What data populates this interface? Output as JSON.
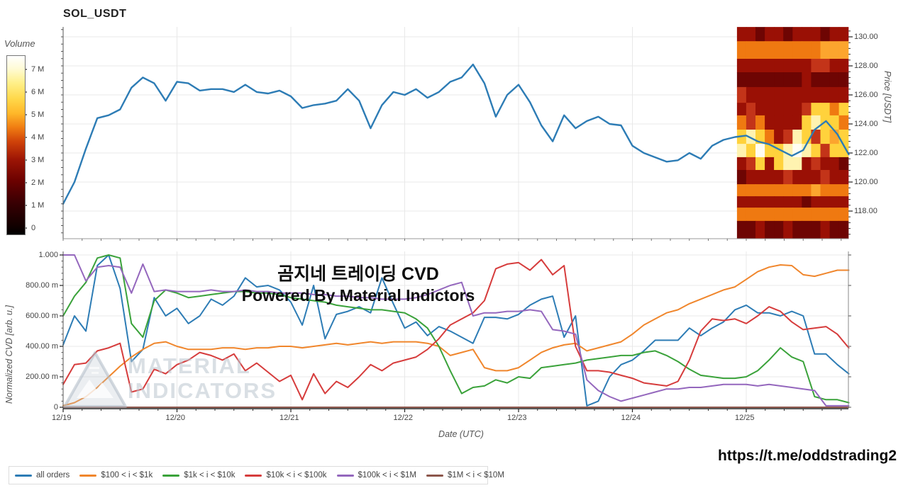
{
  "header": {
    "title": "SOL_USDT"
  },
  "footer": {
    "url": "https://t.me/oddstrading2"
  },
  "overlay": {
    "line1": "곰지네 트레이딩 CVD",
    "line2": "Powered By Material Indictors"
  },
  "watermark": {
    "line1": "MATERIAL",
    "line2": "INDICATORS"
  },
  "legend": [
    {
      "label": "all orders",
      "color": "#2d7cb5"
    },
    {
      "label": "$100 < i < $1k",
      "color": "#f0862c"
    },
    {
      "label": "$1k < i < $10k",
      "color": "#3aa23a"
    },
    {
      "label": "$10k < i < $100k",
      "color": "#d63c3c"
    },
    {
      "label": "$100k < i < $1M",
      "color": "#9467bd"
    },
    {
      "label": "$1M < i < $10M",
      "color": "#8c564b"
    }
  ],
  "chart_data": [
    {
      "id": "price_liquidity",
      "type": "line+heatmap",
      "title": "SOL_USDT",
      "ylabel": "Price [USDT]",
      "ylim": [
        116.1,
        130.7
      ],
      "y_ticks": [
        {
          "v": 130,
          "label": "130.00"
        },
        {
          "v": 128,
          "label": "128.00"
        },
        {
          "v": 126,
          "label": "126.00"
        },
        {
          "v": 124,
          "label": "124.00"
        },
        {
          "v": 122,
          "label": "122.00"
        },
        {
          "v": 120,
          "label": "120.00"
        },
        {
          "v": 118,
          "label": "118.00"
        }
      ],
      "x_categories": [
        "12/19",
        "12/20",
        "12/21",
        "12/22",
        "12/23",
        "12/24",
        "12/25"
      ],
      "x_step_days": 0.1,
      "colorbar": {
        "label": "Volume",
        "tick_labels": [
          "7 M",
          "6 M",
          "5 M",
          "4 M",
          "3 M",
          "2 M",
          "1 M",
          "0"
        ]
      },
      "series": [
        {
          "name": "price",
          "color": "#2d7cb5",
          "values": [
            118.5,
            120.0,
            122.3,
            124.4,
            124.6,
            125.0,
            126.5,
            127.2,
            126.8,
            125.6,
            126.9,
            126.8,
            126.3,
            126.4,
            126.4,
            126.2,
            126.7,
            126.2,
            126.1,
            126.3,
            125.9,
            125.1,
            125.3,
            125.4,
            125.6,
            126.4,
            125.6,
            123.7,
            125.3,
            126.2,
            126.0,
            126.4,
            125.8,
            126.2,
            126.9,
            127.2,
            128.1,
            126.8,
            124.5,
            126.0,
            126.7,
            125.5,
            123.9,
            122.8,
            124.6,
            123.7,
            124.2,
            124.5,
            124.0,
            123.9,
            122.5,
            122.0,
            121.7,
            121.4,
            121.5,
            122.0,
            121.6,
            122.5,
            122.9,
            123.1,
            123.2,
            122.8,
            122.6,
            122.2,
            121.8,
            122.2,
            123.6,
            124.2,
            123.3,
            121.9
          ]
        }
      ],
      "heatmap": {
        "x_day_start": 5.92,
        "x_day_end": 6.9,
        "palette": [
          "#6e0503",
          "#9a1005",
          "#c33419",
          "#ef7911",
          "#fca52e",
          "#ffd23c",
          "#fff3b0",
          "#fffdf2"
        ],
        "rows": [
          {
            "p_top": 130.68,
            "p_bottom": 129.7,
            "cells": "110110111011"
          },
          {
            "p_top": 129.7,
            "p_bottom": 128.49,
            "cells": "333333333444"
          },
          {
            "p_top": 128.49,
            "p_bottom": 127.56,
            "cells": "111111112211"
          },
          {
            "p_top": 127.56,
            "p_bottom": 126.54,
            "cells": "000000010000"
          },
          {
            "p_top": 126.54,
            "p_bottom": 125.46,
            "cells": "211111111111"
          },
          {
            "p_top": 125.46,
            "p_bottom": 124.59,
            "cells": "121111125535"
          },
          {
            "p_top": 124.59,
            "p_bottom": 123.61,
            "cells": "323111156553"
          },
          {
            "p_top": 123.61,
            "p_bottom": 122.63,
            "cells": "565312652545"
          },
          {
            "p_top": 122.63,
            "p_bottom": 121.71,
            "cells": "657556765255"
          },
          {
            "p_top": 121.71,
            "p_bottom": 120.83,
            "cells": "125156612110"
          },
          {
            "p_top": 120.83,
            "p_bottom": 119.85,
            "cells": "011112111211"
          },
          {
            "p_top": 119.85,
            "p_bottom": 119.02,
            "cells": "333333334333"
          },
          {
            "p_top": 119.02,
            "p_bottom": 118.24,
            "cells": "111111101111"
          },
          {
            "p_top": 118.24,
            "p_bottom": 117.32,
            "cells": "333333333333"
          },
          {
            "p_top": 117.32,
            "p_bottom": 116.1,
            "cells": "001001000100"
          }
        ]
      }
    },
    {
      "id": "normalized_cvd",
      "type": "line",
      "ylabel": "Normalized CVD [arb. u.]",
      "xlabel": "Date (UTC)",
      "ylim": [
        0,
        1
      ],
      "y_ticks": [
        {
          "v": 1.0,
          "label": "1.000"
        },
        {
          "v": 0.8,
          "label": "800.00 m"
        },
        {
          "v": 0.6,
          "label": "600.00 m"
        },
        {
          "v": 0.4,
          "label": "400.00 m"
        },
        {
          "v": 0.2,
          "label": "200.00 m"
        },
        {
          "v": 0.0,
          "label": "0"
        }
      ],
      "x_categories": [
        "12/19",
        "12/20",
        "12/21",
        "12/22",
        "12/23",
        "12/24",
        "12/25"
      ],
      "x_step_days": 0.1,
      "series": [
        {
          "name": "all orders",
          "color": "#2d7cb5",
          "values": [
            0.41,
            0.6,
            0.5,
            0.93,
            1.0,
            0.78,
            0.3,
            0.38,
            0.72,
            0.6,
            0.65,
            0.55,
            0.6,
            0.71,
            0.67,
            0.73,
            0.85,
            0.79,
            0.8,
            0.77,
            0.69,
            0.54,
            0.8,
            0.45,
            0.61,
            0.63,
            0.66,
            0.62,
            0.85,
            0.68,
            0.52,
            0.56,
            0.47,
            0.53,
            0.5,
            0.46,
            0.42,
            0.59,
            0.59,
            0.58,
            0.61,
            0.67,
            0.71,
            0.73,
            0.46,
            0.6,
            0.01,
            0.04,
            0.2,
            0.28,
            0.31,
            0.37,
            0.44,
            0.44,
            0.44,
            0.52,
            0.47,
            0.52,
            0.56,
            0.64,
            0.67,
            0.62,
            0.62,
            0.6,
            0.63,
            0.6,
            0.35,
            0.35,
            0.28,
            0.22
          ]
        },
        {
          "name": "$100 < i < $1k",
          "color": "#f0862c",
          "values": [
            0.01,
            0.03,
            0.07,
            0.13,
            0.2,
            0.27,
            0.33,
            0.38,
            0.42,
            0.43,
            0.4,
            0.38,
            0.38,
            0.38,
            0.39,
            0.39,
            0.38,
            0.39,
            0.39,
            0.4,
            0.4,
            0.39,
            0.4,
            0.41,
            0.42,
            0.41,
            0.42,
            0.43,
            0.42,
            0.43,
            0.43,
            0.43,
            0.42,
            0.4,
            0.34,
            0.36,
            0.38,
            0.26,
            0.24,
            0.24,
            0.26,
            0.31,
            0.36,
            0.39,
            0.41,
            0.42,
            0.37,
            0.39,
            0.41,
            0.43,
            0.48,
            0.54,
            0.58,
            0.62,
            0.64,
            0.68,
            0.71,
            0.74,
            0.77,
            0.79,
            0.84,
            0.89,
            0.92,
            0.935,
            0.93,
            0.87,
            0.86,
            0.88,
            0.9,
            0.9
          ]
        },
        {
          "name": "$1k < i < $10k",
          "color": "#3aa23a",
          "values": [
            0.6,
            0.73,
            0.82,
            0.98,
            1.0,
            0.98,
            0.55,
            0.46,
            0.7,
            0.77,
            0.75,
            0.72,
            0.73,
            0.74,
            0.75,
            0.76,
            0.76,
            0.75,
            0.75,
            0.74,
            0.72,
            0.71,
            0.7,
            0.69,
            0.67,
            0.66,
            0.65,
            0.64,
            0.64,
            0.63,
            0.62,
            0.58,
            0.52,
            0.4,
            0.24,
            0.09,
            0.13,
            0.14,
            0.18,
            0.16,
            0.2,
            0.19,
            0.26,
            0.27,
            0.28,
            0.29,
            0.31,
            0.32,
            0.33,
            0.34,
            0.34,
            0.36,
            0.37,
            0.34,
            0.3,
            0.25,
            0.21,
            0.2,
            0.19,
            0.19,
            0.2,
            0.24,
            0.31,
            0.39,
            0.33,
            0.3,
            0.07,
            0.05,
            0.05,
            0.03
          ]
        },
        {
          "name": "$10k < i < $100k",
          "color": "#d63c3c",
          "values": [
            0.15,
            0.28,
            0.29,
            0.37,
            0.39,
            0.42,
            0.1,
            0.12,
            0.25,
            0.22,
            0.28,
            0.31,
            0.36,
            0.34,
            0.31,
            0.35,
            0.24,
            0.29,
            0.23,
            0.17,
            0.21,
            0.05,
            0.22,
            0.09,
            0.17,
            0.13,
            0.2,
            0.28,
            0.24,
            0.29,
            0.31,
            0.33,
            0.38,
            0.45,
            0.54,
            0.58,
            0.62,
            0.7,
            0.91,
            0.94,
            0.95,
            0.9,
            0.97,
            0.87,
            0.93,
            0.4,
            0.24,
            0.24,
            0.23,
            0.21,
            0.19,
            0.16,
            0.15,
            0.14,
            0.17,
            0.31,
            0.5,
            0.58,
            0.57,
            0.58,
            0.55,
            0.6,
            0.66,
            0.63,
            0.56,
            0.51,
            0.52,
            0.53,
            0.48,
            0.39
          ]
        },
        {
          "name": "$100k < i < $1M",
          "color": "#9467bd",
          "values": [
            1.0,
            1.0,
            0.83,
            0.92,
            0.93,
            0.92,
            0.75,
            0.94,
            0.76,
            0.77,
            0.76,
            0.76,
            0.76,
            0.77,
            0.76,
            0.76,
            0.77,
            0.76,
            0.76,
            0.75,
            0.75,
            0.75,
            0.74,
            0.74,
            0.73,
            0.73,
            0.72,
            0.72,
            0.71,
            0.71,
            0.71,
            0.72,
            0.74,
            0.77,
            0.8,
            0.82,
            0.6,
            0.62,
            0.62,
            0.63,
            0.63,
            0.64,
            0.63,
            0.51,
            0.5,
            0.48,
            0.18,
            0.11,
            0.07,
            0.04,
            0.06,
            0.08,
            0.1,
            0.12,
            0.12,
            0.13,
            0.13,
            0.14,
            0.15,
            0.15,
            0.15,
            0.14,
            0.15,
            0.14,
            0.13,
            0.12,
            0.11,
            0.01,
            0.01,
            0.01
          ]
        },
        {
          "name": "$1M < i < $10M",
          "color": "#8c564b",
          "values": [
            0,
            0,
            0,
            0,
            0,
            0,
            0,
            0,
            0,
            0,
            0,
            0,
            0,
            0,
            0,
            0,
            0,
            0,
            0,
            0,
            0,
            0,
            0,
            0,
            0,
            0,
            0,
            0,
            0,
            0,
            0,
            0,
            0,
            0,
            0,
            0,
            0,
            0,
            0,
            0,
            0,
            0,
            0,
            0,
            0,
            0,
            0,
            0,
            0,
            0,
            0,
            0,
            0,
            0,
            0,
            0,
            0,
            0,
            0,
            0,
            0,
            0,
            0,
            0,
            0,
            0,
            0,
            0,
            0,
            0
          ]
        }
      ]
    }
  ]
}
